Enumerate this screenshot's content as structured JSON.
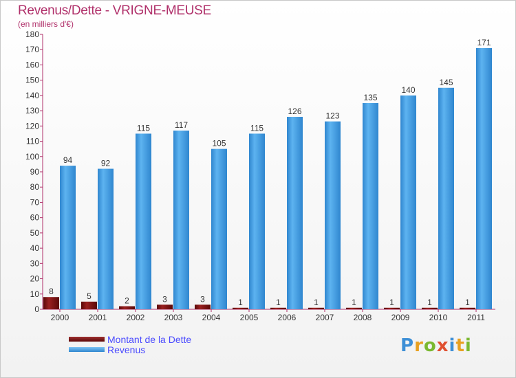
{
  "header": {
    "title": "Revenus/Dette - VRIGNE-MEUSE",
    "subtitle": "(en milliers d'€)"
  },
  "legend": {
    "items": [
      {
        "label": "Montant de la Dette",
        "color": "#7a1010"
      },
      {
        "label": "Revenus",
        "color": "#4aa3e6"
      }
    ]
  },
  "brand": {
    "text": "Proxiti"
  },
  "colors": {
    "title": "#b0306a",
    "legend_text": "#4a4aff",
    "debt": "#7a1010",
    "revenue": "#4aa3e6",
    "axis": "#b0306a",
    "label": "#333333"
  },
  "chart_data": {
    "type": "bar",
    "title": "Revenus/Dette - VRIGNE-MEUSE",
    "ylabel": "(en milliers d'€)",
    "categories": [
      "2000",
      "2001",
      "2002",
      "2003",
      "2004",
      "2005",
      "2006",
      "2007",
      "2008",
      "2009",
      "2010",
      "2011"
    ],
    "series": [
      {
        "name": "Montant de la Dette",
        "values": [
          8,
          5,
          2,
          3,
          3,
          1,
          1,
          1,
          1,
          1,
          1,
          1
        ]
      },
      {
        "name": "Revenus",
        "values": [
          94,
          92,
          115,
          117,
          105,
          115,
          126,
          123,
          135,
          140,
          145,
          171
        ]
      }
    ],
    "ylim": [
      0,
      180
    ],
    "yticks": [
      0,
      10,
      20,
      30,
      40,
      50,
      60,
      70,
      80,
      90,
      100,
      110,
      120,
      130,
      140,
      150,
      160,
      170,
      180
    ],
    "grid": false,
    "legend_position": "bottom-left"
  }
}
